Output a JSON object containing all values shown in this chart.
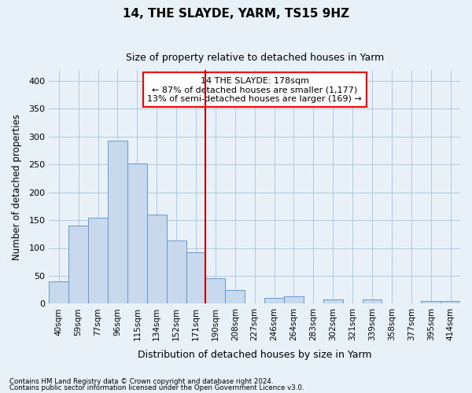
{
  "title": "14, THE SLAYDE, YARM, TS15 9HZ",
  "subtitle": "Size of property relative to detached houses in Yarm",
  "xlabel": "Distribution of detached houses by size in Yarm",
  "ylabel": "Number of detached properties",
  "footnote1": "Contains HM Land Registry data © Crown copyright and database right 2024.",
  "footnote2": "Contains public sector information licensed under the Open Government Licence v3.0.",
  "categories": [
    "40sqm",
    "59sqm",
    "77sqm",
    "96sqm",
    "115sqm",
    "134sqm",
    "152sqm",
    "171sqm",
    "190sqm",
    "208sqm",
    "227sqm",
    "246sqm",
    "264sqm",
    "283sqm",
    "302sqm",
    "321sqm",
    "339sqm",
    "358sqm",
    "377sqm",
    "395sqm",
    "414sqm"
  ],
  "values": [
    40,
    140,
    155,
    293,
    252,
    160,
    113,
    92,
    46,
    25,
    0,
    10,
    13,
    0,
    8,
    0,
    8,
    0,
    0,
    5,
    5
  ],
  "bar_color": "#c8d9ed",
  "bar_edge_color": "#6699cc",
  "grid_color": "#b0c8e0",
  "background_color": "#e8f0f8",
  "plot_bg_color": "#e8f0f8",
  "red_line_index": 7.5,
  "annotation_box_text": "14 THE SLAYDE: 178sqm\n← 87% of detached houses are smaller (1,177)\n13% of semi-detached houses are larger (169) →",
  "ylim": [
    0,
    420
  ],
  "yticks": [
    0,
    50,
    100,
    150,
    200,
    250,
    300,
    350,
    400
  ]
}
